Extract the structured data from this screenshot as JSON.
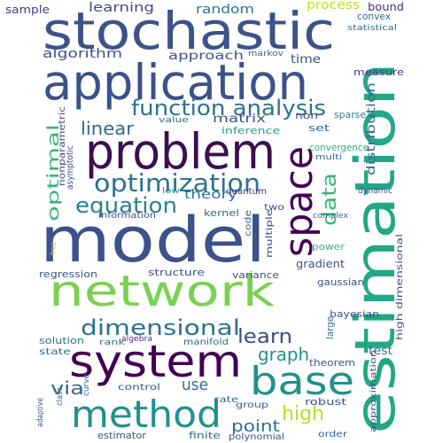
{
  "wordcloud": {
    "words": [
      {
        "text": "stochastic",
        "color": "#3b528b"
      },
      {
        "text": "application",
        "color": "#3b528b"
      },
      {
        "text": "problem",
        "color": "#3b0f4f"
      },
      {
        "text": "model",
        "color": "#3b528b"
      },
      {
        "text": "network",
        "color": "#7ad151"
      },
      {
        "text": "estimation",
        "color": "#22a884"
      },
      {
        "text": "system",
        "color": "#440154"
      },
      {
        "text": "method",
        "color": "#21918c"
      },
      {
        "text": "base",
        "color": "#21918c"
      },
      {
        "text": "space",
        "color": "#440154"
      },
      {
        "text": "optimization",
        "color": "#2c728e"
      },
      {
        "text": "function analysis",
        "color": "#2c728e"
      },
      {
        "text": "dimensional",
        "color": "#2c728e"
      },
      {
        "text": "equation",
        "color": "#26828e"
      },
      {
        "text": "linear",
        "color": "#31688e"
      },
      {
        "text": "learn",
        "color": "#3e4a89"
      },
      {
        "text": "graph",
        "color": "#21918c"
      },
      {
        "text": "via",
        "color": "#31688e"
      },
      {
        "text": "high",
        "color": "#b5de2b"
      },
      {
        "text": "data",
        "color": "#35b779"
      },
      {
        "text": "optimal",
        "color": "#35b779"
      },
      {
        "text": "use",
        "color": "#2c728e"
      },
      {
        "text": "point",
        "color": "#2c728e"
      },
      {
        "text": "sample",
        "color": "#443983"
      },
      {
        "text": "learning",
        "color": "#3e4a89"
      },
      {
        "text": "random",
        "color": "#2c728e"
      },
      {
        "text": "process",
        "color": "#bddf26"
      },
      {
        "text": "bound",
        "color": "#472d7b"
      },
      {
        "text": "convex",
        "color": "#31688e"
      },
      {
        "text": "statistical",
        "color": "#31688e"
      },
      {
        "text": "algorithm",
        "color": "#3b528b"
      },
      {
        "text": "approach",
        "color": "#3b528b"
      },
      {
        "text": "markov",
        "color": "#31688e"
      },
      {
        "text": "time",
        "color": "#3b528b"
      },
      {
        "text": "measure",
        "color": "#443983"
      },
      {
        "text": "matrix",
        "color": "#3b528b"
      },
      {
        "text": "non",
        "color": "#3b528b"
      },
      {
        "text": "sparse",
        "color": "#26828e"
      },
      {
        "text": "value",
        "color": "#31688e"
      },
      {
        "text": "inference",
        "color": "#1f9e89"
      },
      {
        "text": "set",
        "color": "#31688e"
      },
      {
        "text": "convergence",
        "color": "#2ab07f"
      },
      {
        "text": "multi",
        "color": "#31688e"
      },
      {
        "text": "distribution",
        "color": "#31688e"
      },
      {
        "text": "nonparametric",
        "color": "#3e4a89"
      },
      {
        "text": "asymptotic",
        "color": "#3e4a89"
      },
      {
        "text": "theory",
        "color": "#2c728e"
      },
      {
        "text": "quantum",
        "color": "#472d7b"
      },
      {
        "text": "dynamic",
        "color": "#3b528b"
      },
      {
        "text": "low",
        "color": "#1f9e89"
      },
      {
        "text": "information",
        "color": "#3b528b"
      },
      {
        "text": "kernel",
        "color": "#31688e"
      },
      {
        "text": "two",
        "color": "#3e4a89"
      },
      {
        "text": "code",
        "color": "#31688e"
      },
      {
        "text": "multiple",
        "color": "#3e4a89"
      },
      {
        "text": "complex",
        "color": "#31688e"
      },
      {
        "text": "free",
        "color": "#c0df25"
      },
      {
        "text": "power",
        "color": "#35b779"
      },
      {
        "text": "regression",
        "color": "#3b528b"
      },
      {
        "text": "gradient",
        "color": "#3b528b"
      },
      {
        "text": "structure",
        "color": "#3b528b"
      },
      {
        "text": "variance",
        "color": "#3b528b"
      },
      {
        "text": "gaussian",
        "color": "#3b528b"
      },
      {
        "text": "bayesian",
        "color": "#3b528b"
      },
      {
        "text": "high dimensional",
        "color": "#3b528b"
      },
      {
        "text": "solution",
        "color": "#2c728e"
      },
      {
        "text": "rank",
        "color": "#31688e"
      },
      {
        "text": "algebra",
        "color": "#472d7b"
      },
      {
        "text": "manifold",
        "color": "#31688e"
      },
      {
        "text": "state",
        "color": "#31688e"
      },
      {
        "text": "large",
        "color": "#2c728e"
      },
      {
        "text": "test",
        "color": "#31688e"
      },
      {
        "text": "theorem",
        "color": "#3b528b"
      },
      {
        "text": "curve",
        "color": "#31688e"
      },
      {
        "text": "control",
        "color": "#3b528b"
      },
      {
        "text": "rate",
        "color": "#31688e"
      },
      {
        "text": "robust",
        "color": "#3b528b"
      },
      {
        "text": "group",
        "color": "#31688e"
      },
      {
        "text": "class",
        "color": "#31688e"
      },
      {
        "text": "adaptive",
        "color": "#3b528b"
      },
      {
        "text": "approximation",
        "color": "#3b528b"
      },
      {
        "text": "estimator",
        "color": "#3b528b"
      },
      {
        "text": "finite",
        "color": "#31688e"
      },
      {
        "text": "polynomial",
        "color": "#3b528b"
      },
      {
        "text": "order",
        "color": "#31688e"
      }
    ]
  }
}
